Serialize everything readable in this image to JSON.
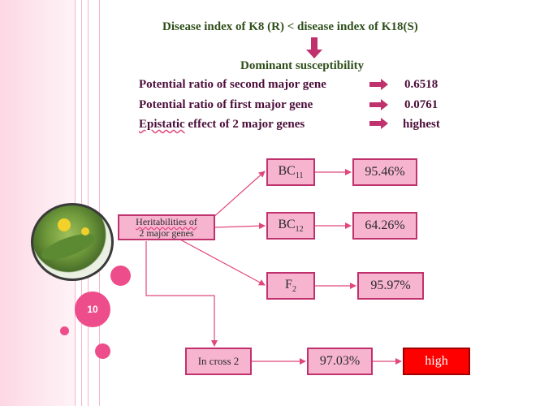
{
  "slide": {
    "title": "Disease  index of K8 (R) < disease index of K18(S)",
    "conclusion": "Dominant susceptibility",
    "rows": [
      {
        "label": "Potential ratio of second major gene",
        "value": "0.6518"
      },
      {
        "label": "Potential ratio of  first major gene",
        "value": "0.0761"
      },
      {
        "label": "Epistatic effect of 2 major genes",
        "value": "highest"
      }
    ],
    "page_number": "10"
  },
  "diagram": {
    "source": {
      "line1": "Heritabilities of",
      "line2": "2 major genes"
    },
    "targets": [
      {
        "base": "BC",
        "sub": "11",
        "value": "95.46%"
      },
      {
        "base": "BC",
        "sub": "12",
        "value": "64.26%"
      },
      {
        "base": "F",
        "sub": "2",
        "value": "95.97%"
      }
    ],
    "cross": {
      "label": "In cross  2",
      "value": "97.03%",
      "result": "high"
    }
  },
  "colors": {
    "accent": "#ee4d8b",
    "box_fill": "#f7b4cf",
    "box_border": "#c0326d",
    "high": "#ff0000",
    "title_green": "#2f4f1a",
    "text_maroon": "#4b0f3a"
  },
  "icons": [
    "down-arrow-icon",
    "right-arrow-icon",
    "cucumber-photo"
  ]
}
